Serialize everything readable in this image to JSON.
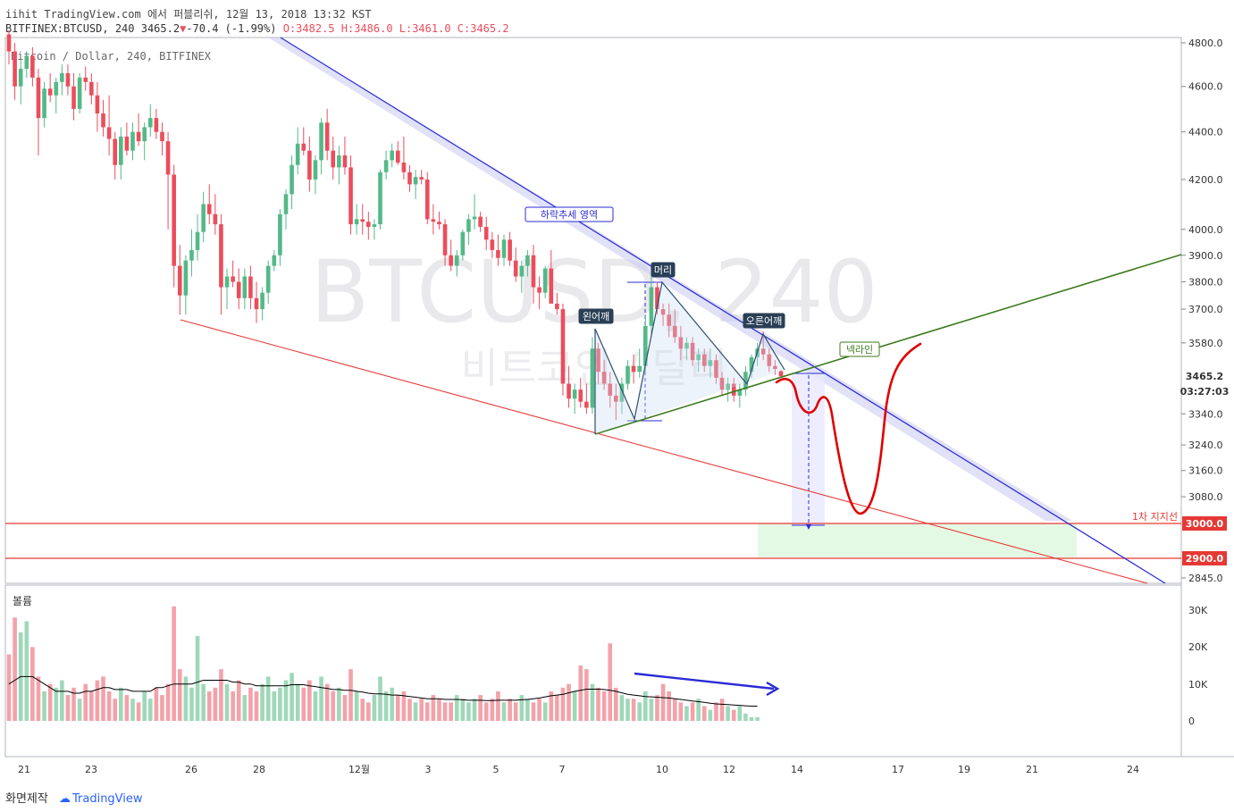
{
  "header": {
    "line1": "iihit TradingView.com 에서 퍼블리쉬, 12월 13, 2018 13:32 KST",
    "symbol": "BITFINEX:BTCUSD, 240",
    "last": "3465.2",
    "change": "-70.4 (-1.99%)",
    "ohlc": "O:3482.5 H:3486.0 L:3461.0 C:3465.2",
    "subtitle": "Bitcoin / Dollar, 240, BITFINEX"
  },
  "watermark": {
    "main": "BTCUSD, 240",
    "sub": "비트코인 / 달러"
  },
  "annotations": {
    "downtrend": "하락추세 영역",
    "left_shoulder": "왼어깨",
    "head": "머리",
    "right_shoulder": "오른어깨",
    "neckline": "넥라인",
    "support": "1차 지지선"
  },
  "price_tags": {
    "last": "3465.2",
    "countdown": "03:27:03",
    "support1": "3000.0",
    "support2": "2900.0"
  },
  "volume_label": "볼륨",
  "footer": {
    "made": "화면제작",
    "brand": "TradingView"
  },
  "colors": {
    "up": "#53b987",
    "down": "#eb4d5c",
    "blue_line": "#2b2bd6",
    "red_line": "#e53935",
    "neck": "#3d7a1f"
  },
  "chart_data": {
    "type": "candlestick",
    "price_axis": {
      "scale": "log",
      "ticks": [
        4800,
        4600,
        4400,
        4200,
        4000,
        3900,
        3800,
        3700,
        3580,
        3340,
        3240,
        3160,
        3080,
        2845
      ]
    },
    "volume_axis": {
      "ticks": [
        "30K",
        "20K",
        "10K",
        "0"
      ]
    },
    "x_ticks": [
      "21",
      "23",
      "26",
      "28",
      "12월",
      "3",
      "5",
      "7",
      "10",
      "12",
      "14",
      "17",
      "19",
      "21",
      "24"
    ],
    "candles_ohlc": [
      [
        4840,
        4860,
        4700,
        4760
      ],
      [
        4760,
        4800,
        4540,
        4600
      ],
      [
        4600,
        4720,
        4520,
        4680
      ],
      [
        4680,
        4760,
        4640,
        4740
      ],
      [
        4740,
        4780,
        4600,
        4640
      ],
      [
        4640,
        4680,
        4300,
        4460
      ],
      [
        4460,
        4620,
        4420,
        4590
      ],
      [
        4590,
        4660,
        4530,
        4560
      ],
      [
        4560,
        4640,
        4480,
        4620
      ],
      [
        4620,
        4700,
        4560,
        4660
      ],
      [
        4660,
        4700,
        4560,
        4600
      ],
      [
        4600,
        4660,
        4450,
        4500
      ],
      [
        4500,
        4660,
        4480,
        4640
      ],
      [
        4640,
        4690,
        4580,
        4620
      ],
      [
        4620,
        4660,
        4520,
        4560
      ],
      [
        4560,
        4620,
        4400,
        4480
      ],
      [
        4480,
        4540,
        4380,
        4420
      ],
      [
        4420,
        4560,
        4300,
        4370
      ],
      [
        4370,
        4400,
        4200,
        4260
      ],
      [
        4260,
        4420,
        4200,
        4380
      ],
      [
        4380,
        4440,
        4300,
        4320
      ],
      [
        4320,
        4440,
        4280,
        4400
      ],
      [
        4400,
        4480,
        4340,
        4360
      ],
      [
        4360,
        4440,
        4280,
        4420
      ],
      [
        4420,
        4520,
        4380,
        4460
      ],
      [
        4460,
        4500,
        4370,
        4400
      ],
      [
        4400,
        4440,
        4300,
        4360
      ],
      [
        4360,
        4400,
        4000,
        4220
      ],
      [
        4220,
        4260,
        3780,
        3860
      ],
      [
        3860,
        3940,
        3680,
        3750
      ],
      [
        3750,
        3900,
        3680,
        3880
      ],
      [
        3880,
        4000,
        3820,
        3920
      ],
      [
        3920,
        4060,
        3880,
        3990
      ],
      [
        3990,
        4150,
        3950,
        4100
      ],
      [
        4100,
        4180,
        4020,
        4060
      ],
      [
        4060,
        4140,
        3980,
        4020
      ],
      [
        4020,
        4060,
        3680,
        3780
      ],
      [
        3780,
        3850,
        3700,
        3820
      ],
      [
        3820,
        3880,
        3780,
        3800
      ],
      [
        3800,
        3850,
        3700,
        3740
      ],
      [
        3740,
        3850,
        3700,
        3820
      ],
      [
        3820,
        3860,
        3700,
        3740
      ],
      [
        3740,
        3800,
        3650,
        3700
      ],
      [
        3700,
        3780,
        3660,
        3760
      ],
      [
        3760,
        3880,
        3720,
        3860
      ],
      [
        3860,
        3920,
        3840,
        3900
      ],
      [
        3900,
        4080,
        3860,
        4060
      ],
      [
        4060,
        4160,
        4000,
        4140
      ],
      [
        4140,
        4300,
        4080,
        4260
      ],
      [
        4260,
        4420,
        4220,
        4350
      ],
      [
        4350,
        4420,
        4300,
        4320
      ],
      [
        4320,
        4380,
        4150,
        4200
      ],
      [
        4200,
        4300,
        4140,
        4280
      ],
      [
        4280,
        4460,
        4220,
        4440
      ],
      [
        4440,
        4500,
        4280,
        4320
      ],
      [
        4320,
        4380,
        4200,
        4250
      ],
      [
        4250,
        4340,
        4180,
        4300
      ],
      [
        4300,
        4380,
        4220,
        4250
      ],
      [
        4250,
        4300,
        3980,
        4020
      ],
      [
        4020,
        4100,
        3980,
        4040
      ],
      [
        4040,
        4100,
        3980,
        4030
      ],
      [
        4030,
        4070,
        3960,
        4010
      ],
      [
        4010,
        4040,
        3960,
        4020
      ],
      [
        4020,
        4240,
        4000,
        4230
      ],
      [
        4230,
        4320,
        4200,
        4280
      ],
      [
        4280,
        4350,
        4250,
        4320
      ],
      [
        4320,
        4360,
        4260,
        4270
      ],
      [
        4270,
        4380,
        4200,
        4230
      ],
      [
        4230,
        4260,
        4150,
        4180
      ],
      [
        4180,
        4240,
        4120,
        4210
      ],
      [
        4210,
        4240,
        4180,
        4200
      ],
      [
        4200,
        4230,
        4020,
        4040
      ],
      [
        4040,
        4100,
        3980,
        4030
      ],
      [
        4030,
        4070,
        4000,
        4020
      ],
      [
        4020,
        4040,
        3860,
        3900
      ],
      [
        3900,
        3960,
        3840,
        3860
      ],
      [
        3860,
        3920,
        3820,
        3900
      ],
      [
        3900,
        4000,
        3880,
        3990
      ],
      [
        3990,
        4060,
        3940,
        4040
      ],
      [
        4040,
        4140,
        4000,
        4050
      ],
      [
        4050,
        4070,
        3990,
        4010
      ],
      [
        4010,
        4050,
        3920,
        3960
      ],
      [
        3960,
        3990,
        3890,
        3920
      ],
      [
        3920,
        3980,
        3860,
        3890
      ],
      [
        3890,
        3980,
        3860,
        3960
      ],
      [
        3960,
        3990,
        3860,
        3880
      ],
      [
        3880,
        3930,
        3800,
        3820
      ],
      [
        3820,
        3880,
        3760,
        3860
      ],
      [
        3860,
        3920,
        3820,
        3900
      ],
      [
        3900,
        3940,
        3720,
        3780
      ],
      [
        3780,
        3820,
        3700,
        3760
      ],
      [
        3760,
        3860,
        3740,
        3850
      ],
      [
        3850,
        3920,
        3800,
        3720
      ],
      [
        3720,
        3760,
        3680,
        3700
      ],
      [
        3700,
        3720,
        3400,
        3440
      ],
      [
        3440,
        3500,
        3360,
        3390
      ],
      [
        3390,
        3440,
        3340,
        3420
      ],
      [
        3420,
        3460,
        3360,
        3380
      ],
      [
        3380,
        3440,
        3340,
        3360
      ],
      [
        3360,
        3600,
        3340,
        3560
      ],
      [
        3560,
        3580,
        3440,
        3480
      ],
      [
        3480,
        3520,
        3420,
        3440
      ],
      [
        3440,
        3480,
        3360,
        3400
      ],
      [
        3400,
        3440,
        3320,
        3380
      ],
      [
        3380,
        3460,
        3340,
        3440
      ],
      [
        3440,
        3520,
        3420,
        3500
      ],
      [
        3500,
        3540,
        3440,
        3480
      ],
      [
        3480,
        3560,
        3460,
        3500
      ],
      [
        3500,
        3680,
        3480,
        3640
      ],
      [
        3640,
        3820,
        3600,
        3780
      ],
      [
        3780,
        3800,
        3680,
        3700
      ],
      [
        3700,
        3720,
        3640,
        3680
      ],
      [
        3680,
        3720,
        3600,
        3640
      ],
      [
        3640,
        3700,
        3580,
        3600
      ],
      [
        3600,
        3640,
        3520,
        3560
      ],
      [
        3560,
        3600,
        3520,
        3580
      ],
      [
        3580,
        3600,
        3500,
        3520
      ],
      [
        3520,
        3560,
        3480,
        3540
      ],
      [
        3540,
        3560,
        3480,
        3500
      ],
      [
        3500,
        3560,
        3460,
        3520
      ],
      [
        3520,
        3540,
        3440,
        3460
      ],
      [
        3460,
        3480,
        3400,
        3420
      ],
      [
        3420,
        3460,
        3380,
        3440
      ],
      [
        3440,
        3460,
        3380,
        3400
      ],
      [
        3400,
        3440,
        3360,
        3420
      ],
      [
        3420,
        3500,
        3400,
        3480
      ],
      [
        3480,
        3540,
        3460,
        3530
      ],
      [
        3530,
        3580,
        3500,
        3560
      ],
      [
        3560,
        3620,
        3520,
        3540
      ],
      [
        3540,
        3560,
        3480,
        3500
      ],
      [
        3500,
        3520,
        3470,
        3490
      ],
      [
        3482.5,
        3486,
        3461,
        3465.2
      ]
    ],
    "volumes": [
      18,
      28,
      24,
      27,
      20,
      12,
      8,
      10,
      9,
      11,
      7,
      9,
      6,
      10,
      8,
      11,
      12,
      8,
      6,
      9,
      7,
      6,
      5,
      8,
      6,
      9,
      7,
      10,
      31,
      14,
      12,
      9,
      23,
      10,
      8,
      9,
      14,
      10,
      8,
      11,
      7,
      9,
      8,
      10,
      12,
      8,
      9,
      11,
      13,
      10,
      9,
      11,
      8,
      12,
      10,
      8,
      9,
      7,
      14,
      8,
      6,
      5,
      7,
      12,
      8,
      9,
      7,
      8,
      6,
      5,
      6,
      5,
      7,
      6,
      5,
      5,
      7,
      6,
      5,
      6,
      7,
      5,
      6,
      8,
      5,
      6,
      5,
      7,
      6,
      5,
      6,
      5,
      8,
      7,
      9,
      10,
      8,
      15,
      14,
      10,
      9,
      8,
      21,
      9,
      7,
      6,
      6,
      5,
      8,
      6,
      7,
      10,
      8,
      6,
      5,
      4,
      5,
      6,
      4,
      3,
      5,
      6,
      4,
      3,
      4,
      2,
      1,
      1
    ],
    "volume_ma": [
      10,
      11,
      12,
      12,
      12,
      11,
      10,
      9,
      8,
      8,
      8,
      7.5,
      7.5,
      8,
      8,
      8.5,
      9,
      9,
      8.5,
      8.5,
      8.5,
      8,
      8,
      8,
      8,
      9,
      9,
      9.5,
      10,
      10,
      10,
      10,
      10.5,
      11,
      11,
      11,
      11,
      11,
      10.5,
      10.5,
      10,
      10,
      9.5,
      9.5,
      9.5,
      9.5,
      9.5,
      9.5,
      9.8,
      9.8,
      9.8,
      9.5,
      9.3,
      9,
      8.8,
      8.5,
      8.5,
      8.3,
      8.3,
      8,
      7.8,
      7.5,
      7.3,
      7.3,
      7.2,
      7,
      7,
      6.8,
      6.6,
      6.4,
      6.2,
      6,
      6,
      6,
      5.8,
      5.8,
      5.8,
      5.7,
      5.6,
      5.6,
      5.6,
      5.5,
      5.5,
      5.6,
      5.6,
      5.6,
      5.6,
      5.7,
      5.8,
      6,
      6.2,
      6.5,
      6.8,
      7,
      7.2,
      7.6,
      8,
      8.3,
      8.6,
      8.6,
      8.6,
      8.5,
      8.3,
      8,
      7.6,
      7.2,
      7,
      6.8,
      6.6,
      6.5,
      6.4,
      6.3,
      6.2,
      6,
      5.8,
      5.6,
      5.4,
      5.2,
      5,
      4.8,
      4.6,
      4.5,
      4.4,
      4.3,
      4.2,
      4.1,
      4,
      4
    ]
  }
}
